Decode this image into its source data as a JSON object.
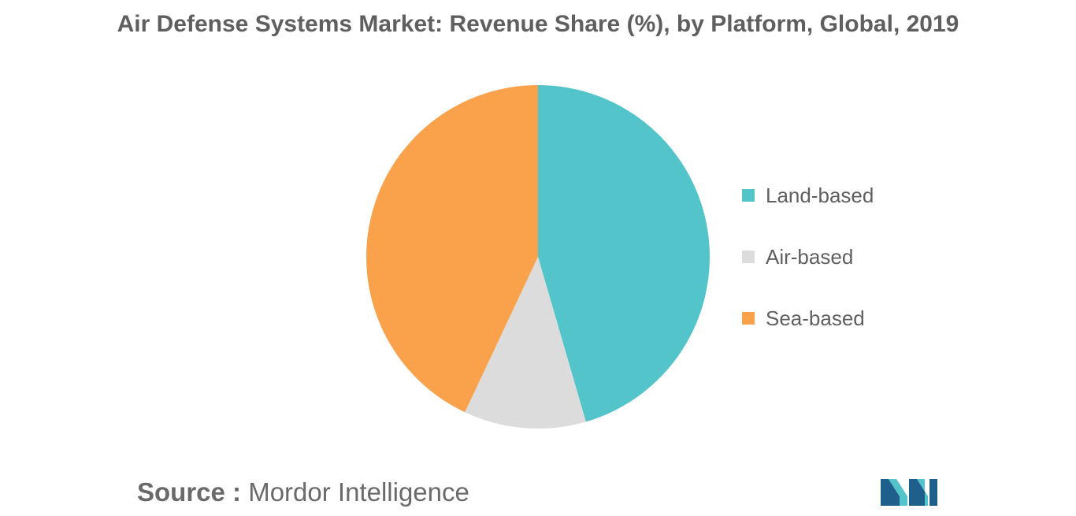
{
  "title": "Air Defense Systems Market: Revenue Share (%), by Platform, Global, 2019",
  "chart_data": {
    "type": "pie",
    "title": "Air Defense Systems Market: Revenue Share (%), by Platform, Global, 2019",
    "categories": [
      "Land-based",
      "Air-based",
      "Sea-based"
    ],
    "values": [
      45.5,
      11.5,
      43.0
    ],
    "colors": [
      "#52C4CA",
      "#DCDCDC",
      "#F9A24B"
    ],
    "start_angle": "12 o'clock, clockwise",
    "legend_position": "right"
  },
  "legend": {
    "items": [
      {
        "label": "Land-based",
        "color": "#52C4CA"
      },
      {
        "label": "Air-based",
        "color": "#DCDCDC"
      },
      {
        "label": "Sea-based",
        "color": "#F9A24B"
      }
    ]
  },
  "source": {
    "label": "Source :",
    "text": "Mordor Intelligence"
  },
  "logo": {
    "icon": "mordor-intelligence-logo",
    "colors": [
      "#1F5F8B",
      "#52C4CA"
    ]
  }
}
